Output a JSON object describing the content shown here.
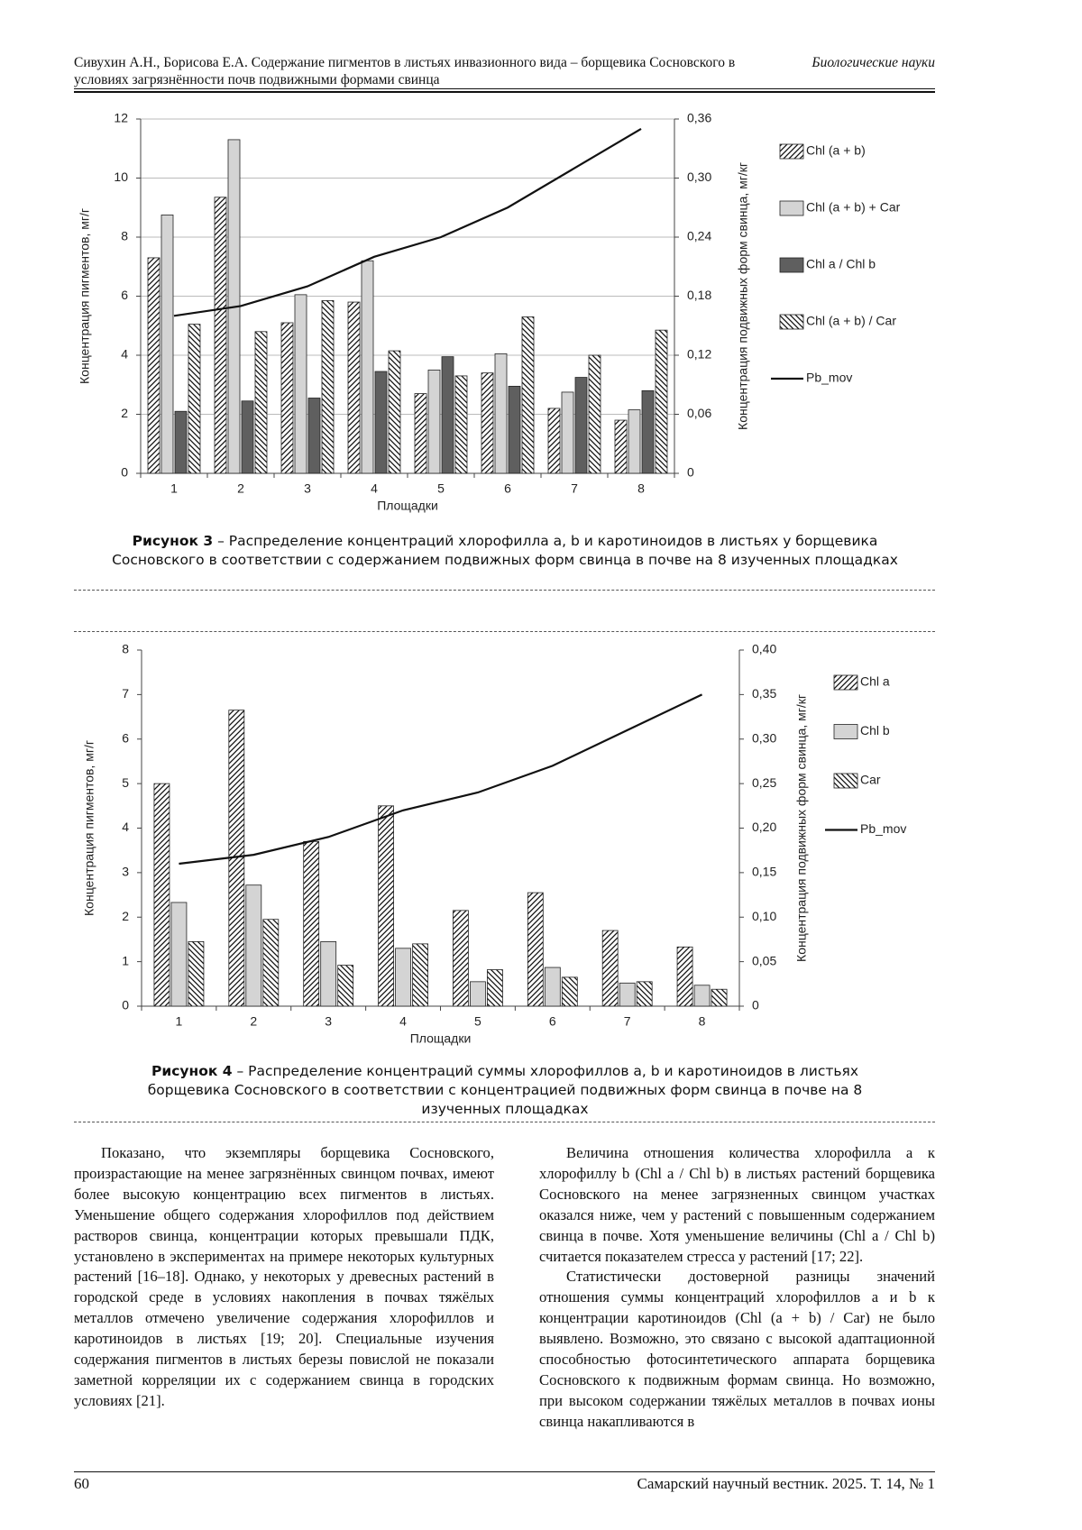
{
  "header": {
    "authors_title": "Сивухин А.Н., Борисова Е.А. Содержание пигментов в листьях инвазионного вида – борщевика Сосновского в условиях загрязнённости почв подвижными формами свинца",
    "section": "Биологические науки"
  },
  "chart_data": [
    {
      "type": "bar",
      "caption_label": "Рисунок 3",
      "caption": "– Распределение концентраций хлорофилла a, b и каротиноидов в листьях у борщевика Сосновского в соответствии с содержанием подвижных форм свинца в почве на 8 изученных площадках",
      "x_label": "Площадки",
      "y_label": "Концентрация пигментов, мг/г",
      "y2_label": "Концентрация подвижных форм свинца, мг/кг",
      "categories": [
        "1",
        "2",
        "3",
        "4",
        "5",
        "6",
        "7",
        "8"
      ],
      "series": [
        {
          "name": "Chl (a + b)",
          "color": "#ffffff",
          "hatch": "forward",
          "values": [
            7.3,
            9.35,
            5.1,
            5.8,
            2.7,
            3.4,
            2.2,
            1.8
          ]
        },
        {
          "name": "Chl (a + b) + Car",
          "color": "#d4d4d4",
          "hatch": null,
          "values": [
            8.75,
            11.3,
            6.05,
            7.2,
            3.5,
            4.05,
            2.75,
            2.15
          ]
        },
        {
          "name": "Chl a / Chl b",
          "color": "#5f5f5f",
          "hatch": null,
          "values": [
            2.1,
            2.45,
            2.55,
            3.45,
            3.95,
            2.95,
            3.25,
            2.8
          ]
        },
        {
          "name": "Chl (a + b) / Car",
          "color": "#ffffff",
          "hatch": "backward",
          "values": [
            5.05,
            4.8,
            5.85,
            4.15,
            3.3,
            5.3,
            4.0,
            4.85
          ]
        },
        {
          "name": "Pb_mov",
          "type": "line",
          "axis": "y2",
          "color": "#111111",
          "values": [
            0.16,
            0.17,
            0.19,
            0.22,
            0.24,
            0.27,
            0.31,
            0.35
          ]
        }
      ],
      "ylim": [
        0,
        12
      ],
      "yticks": [
        0,
        2,
        4,
        6,
        8,
        10,
        12
      ],
      "y2lim": [
        0,
        0.36
      ],
      "y2ticks": [
        0,
        {
          "value": 0.06,
          "label": "0,06"
        },
        {
          "value": 0.12,
          "label": "0,12"
        },
        {
          "value": 0.18,
          "label": "0,18"
        },
        {
          "value": 0.24,
          "label": "0,24"
        },
        {
          "value": 0.3,
          "label": "0,30"
        },
        {
          "value": 0.36,
          "label": "0,36"
        }
      ],
      "grid": true,
      "legend": "right"
    },
    {
      "type": "bar",
      "caption_label": "Рисунок 4",
      "caption": "– Распределение концентраций суммы хлорофиллов a, b и каротиноидов в листьях борщевика Сосновского в соответствии с концентрацией подвижных форм свинца в почве на 8 изученных площадках",
      "x_label": "Площадки",
      "y_label": "Концентрация пигментов, мг/г",
      "y2_label": "Концентрация подвижных форм свинца, мг/кг",
      "categories": [
        "1",
        "2",
        "3",
        "4",
        "5",
        "6",
        "7",
        "8"
      ],
      "series": [
        {
          "name": "Chl a",
          "color": "#ffffff",
          "hatch": "forward",
          "values": [
            5.0,
            6.65,
            3.7,
            4.5,
            2.15,
            2.55,
            1.7,
            1.33
          ]
        },
        {
          "name": "Chl b",
          "color": "#d4d4d4",
          "hatch": null,
          "values": [
            2.33,
            2.72,
            1.45,
            1.3,
            0.55,
            0.87,
            0.52,
            0.47
          ]
        },
        {
          "name": "Car",
          "color": "#ffffff",
          "hatch": "backward",
          "values": [
            1.45,
            1.95,
            0.92,
            1.4,
            0.82,
            0.65,
            0.55,
            0.38
          ]
        },
        {
          "name": "Pb_mov",
          "type": "line",
          "axis": "y2",
          "color": "#111111",
          "values": [
            0.16,
            0.17,
            0.19,
            0.22,
            0.24,
            0.27,
            0.31,
            0.35
          ]
        }
      ],
      "ylim": [
        0,
        8
      ],
      "yticks": [
        0,
        1,
        2,
        3,
        4,
        5,
        6,
        7,
        8
      ],
      "y2lim": [
        0,
        0.4
      ],
      "y2ticks": [
        0,
        {
          "value": 0.05,
          "label": "0,05"
        },
        {
          "value": 0.1,
          "label": "0,10"
        },
        {
          "value": 0.15,
          "label": "0,15"
        },
        {
          "value": 0.2,
          "label": "0,20"
        },
        {
          "value": 0.25,
          "label": "0,25"
        },
        {
          "value": 0.3,
          "label": "0,30"
        },
        {
          "value": 0.35,
          "label": "0,35"
        },
        {
          "value": 0.4,
          "label": "0,40"
        }
      ],
      "grid": false,
      "legend": "right"
    }
  ],
  "body": {
    "left": [
      "Показано, что экземпляры борщевика Сосновского, произрастающие на менее загрязнённых свинцом почвах, имеют более высокую концентрацию всех пигментов в листьях. Уменьшение общего содержания хлорофиллов под действием растворов свинца, концентрации которых превышали ПДК, установлено в экспериментах на примере некоторых культурных растений [16–18]. Однако, у некоторых у древесных растений в городской среде в условиях накопления в почвах тяжёлых металлов отмечено увеличение содержания хлорофиллов и каротиноидов в листьях [19; 20]. Специальные изучения содержания пигментов в листьях березы повислой не показали заметной корреляции их с содержанием свинца в городских условиях [21]."
    ],
    "right": [
      "Величина отношения количества хлорофилла a к хлорофиллу b (Chl a / Chl b) в листьях растений борщевика Сосновского на менее загрязненных свинцом участках оказался ниже, чем у растений с повышенным содержанием свинца в почве. Хотя уменьшение величины (Chl a / Chl b) считается показателем стресса у растений [17; 22].",
      "Статистически достоверной разницы значений отношения суммы концентраций хлорофиллов a и b к концентрации каротиноидов (Chl (a + b) / Car) не было выявлено. Возможно, это связано с высокой адаптационной способностью фотосинтетического аппарата борщевика Сосновского к подвижным формам свинца. Но возможно, при высоком содержании тяжёлых металлов в почвах ионы свинца накапливаются в"
    ]
  },
  "footer": {
    "page": "60",
    "journal": "Самарский научный вестник. 2025. Т. 14, № 1"
  }
}
